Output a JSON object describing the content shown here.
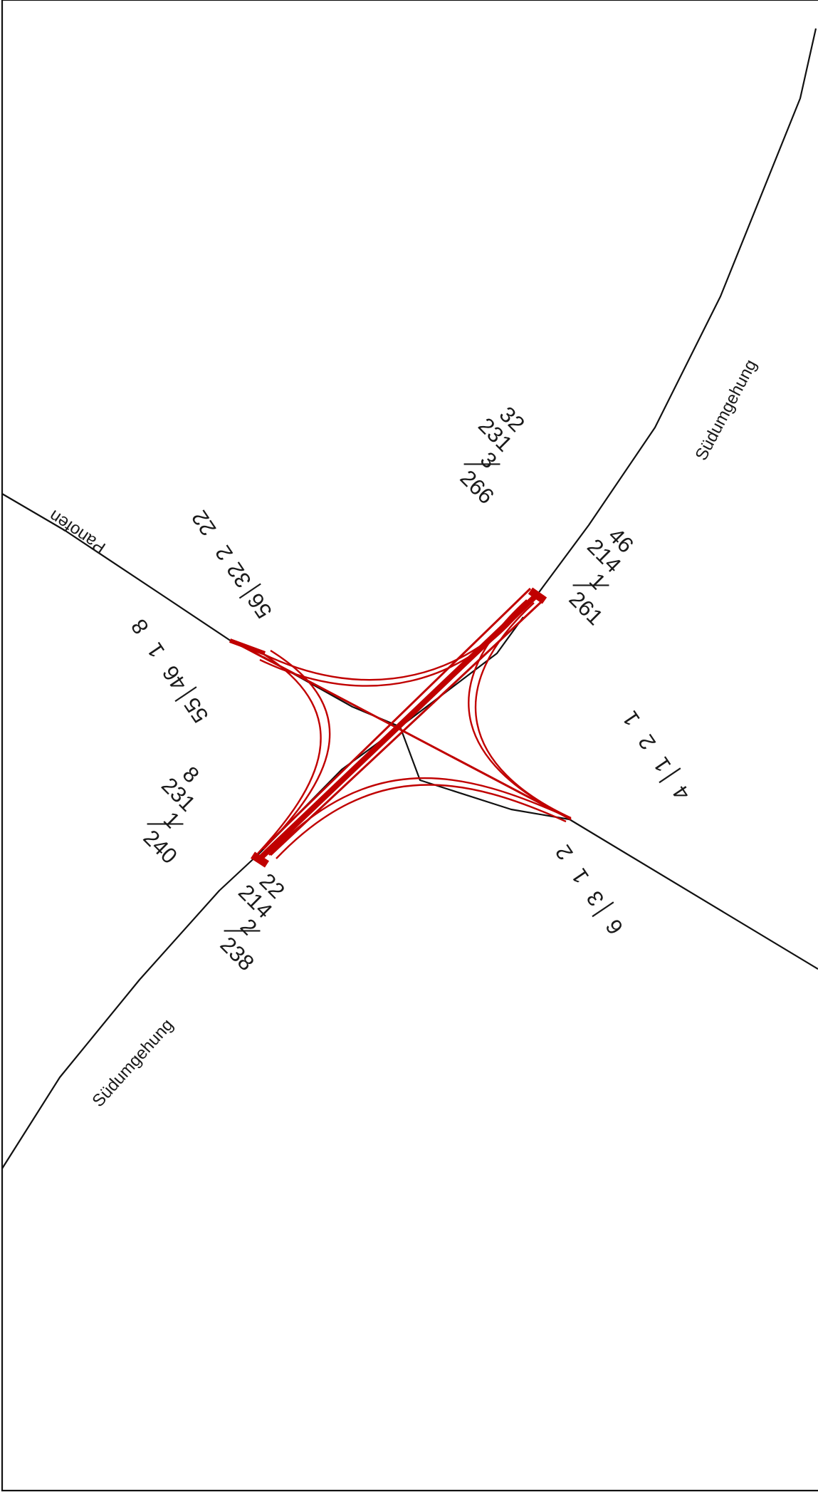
{
  "diagram": {
    "streets": {
      "suedumgehung_ne": "Südumgehung",
      "suedumgehung_sw": "Südumgehung",
      "panofen": "Panofen"
    },
    "counts": {
      "ne_inbound": {
        "left": "32",
        "through": "231",
        "right": "3",
        "total": "266"
      },
      "ne_outbound": {
        "left": "46",
        "through": "214",
        "right": "1",
        "total": "261"
      },
      "nw_inbound": {
        "left": "22",
        "through": "2",
        "right": "32",
        "total": "56"
      },
      "nw_outbound": {
        "left": "8",
        "through": "1",
        "right": "46",
        "total": "55"
      },
      "sw_inbound": {
        "left": "8",
        "through": "231",
        "right": "1",
        "total": "240"
      },
      "sw_outbound": {
        "left": "22",
        "through": "214",
        "right": "2",
        "total": "238"
      },
      "se_inbound": {
        "left": "2",
        "through": "1",
        "right": "3",
        "total": "6"
      },
      "se_outbound": {
        "left": "1",
        "through": "2",
        "right": "1",
        "total": "4"
      }
    },
    "colors": {
      "flow": "#c00000",
      "road": "#111111",
      "text": "#1a1a1a",
      "background": "#ffffff"
    }
  }
}
